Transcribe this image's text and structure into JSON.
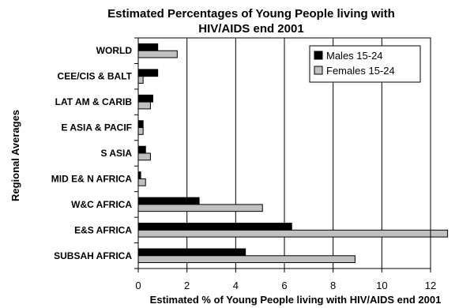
{
  "chart_data": {
    "type": "bar",
    "orientation": "horizontal",
    "title_lines": [
      "Estimated Percentages of Young People living with",
      "HIV/AIDS end 2001"
    ],
    "xlabel": "Estimated % of Young People living with HIV/AIDS end 2001",
    "ylabel": "Regional Averages",
    "xlim": [
      0,
      12
    ],
    "xticks": [
      0,
      2,
      4,
      6,
      8,
      10,
      12
    ],
    "grid": "vertical",
    "legend_position": "top-right",
    "categories": [
      "WORLD",
      "CEE/CIS & BALT",
      "LAT AM & CARIB",
      "E ASIA & PACIF",
      "S ASIA",
      "MID E& N AFRICA",
      "W&C AFRICA",
      "E&S AFRICA",
      "SUBSAH AFRICA"
    ],
    "series": [
      {
        "name": "Males 15-24",
        "color": "#000000",
        "values": [
          0.8,
          0.8,
          0.6,
          0.2,
          0.3,
          0.1,
          2.5,
          6.3,
          4.4
        ]
      },
      {
        "name": "Females 15-24",
        "color": "#c0c0c0",
        "values": [
          1.6,
          0.2,
          0.5,
          0.2,
          0.5,
          0.3,
          5.1,
          12.7,
          8.9
        ]
      }
    ]
  }
}
